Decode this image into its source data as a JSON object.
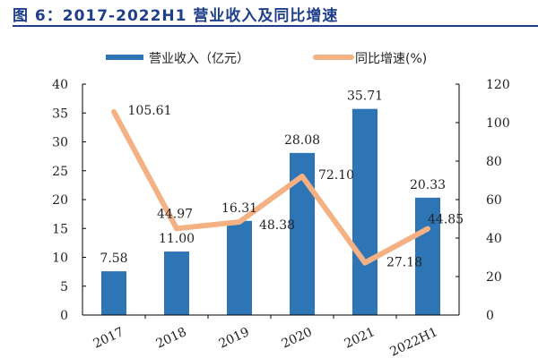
{
  "title": "图 6：2017-2022H1 营业收入及同比增速",
  "colors": {
    "bar": "#2e75b6",
    "line": "#f4b183",
    "title": "#1f3f8a"
  },
  "chart_data": {
    "type": "bar+line",
    "categories": [
      "2017",
      "2018",
      "2019",
      "2020",
      "2021",
      "2022H1"
    ],
    "series": [
      {
        "name": "营业收入（亿元）",
        "type": "bar",
        "axis": "left",
        "values": [
          7.58,
          11.0,
          16.31,
          28.08,
          35.71,
          20.33
        ],
        "labels": [
          "7.58",
          "11.00",
          "16.31",
          "28.08",
          "35.71",
          "20.33"
        ]
      },
      {
        "name": "同比增速(%)",
        "type": "line",
        "axis": "right",
        "values": [
          105.61,
          44.97,
          48.38,
          72.1,
          27.18,
          44.85
        ],
        "labels": [
          "105.61",
          "44.97",
          "48.38",
          "72.10",
          "27.18",
          "44.85"
        ]
      }
    ],
    "y_left": {
      "range": [
        0,
        40
      ],
      "ticks": [
        "0",
        "5",
        "10",
        "15",
        "20",
        "25",
        "30",
        "35",
        "40"
      ]
    },
    "y_right": {
      "range": [
        0,
        120
      ],
      "ticks": [
        "0",
        "20",
        "40",
        "60",
        "80",
        "100",
        "120"
      ]
    },
    "legend_position": "top",
    "grid": false
  }
}
